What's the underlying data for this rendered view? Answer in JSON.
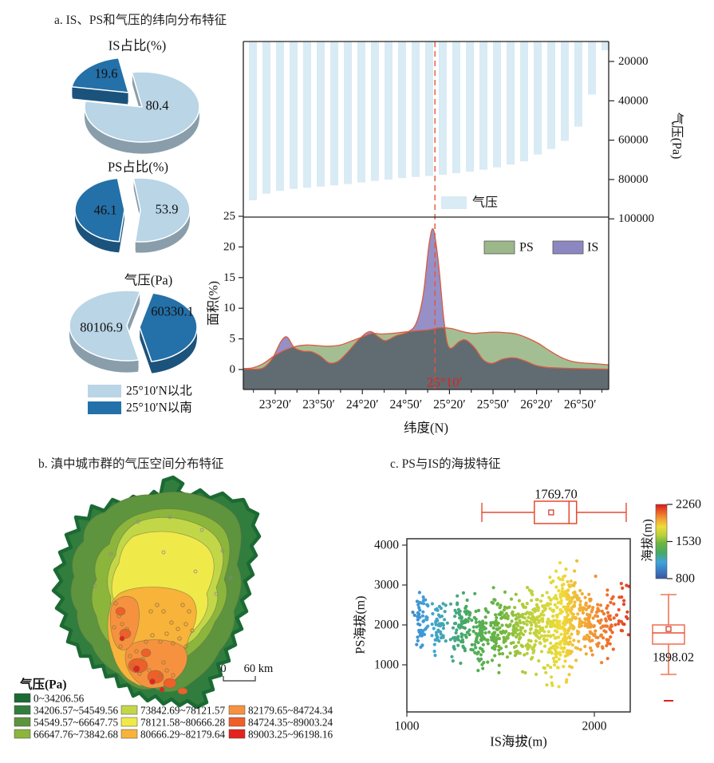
{
  "panels": {
    "a": {
      "title": "a. IS、PS和气压的纬向分布特征",
      "pie_legend": [
        {
          "label": "25°10′N以北",
          "color": "#b9d5e6"
        },
        {
          "label": "25°10′N以南",
          "color": "#2470a8"
        }
      ]
    },
    "b": {
      "title": "b. 滇中城市群的气压空间分布特征"
    },
    "c": {
      "title": "c. PS与IS的海拔特征"
    }
  },
  "chart_data": [
    {
      "id": "pressure_bars",
      "type": "bar",
      "legend": "气压",
      "ylabel": "气压(Pa)",
      "yticks": [
        20000,
        40000,
        60000,
        80000,
        100000
      ],
      "y_axis_reversed": true,
      "bar_color": "#d9ebf4",
      "values": [
        90600,
        87200,
        85700,
        84800,
        84200,
        83600,
        83000,
        82300,
        81500,
        80700,
        80000,
        79300,
        78700,
        78200,
        77600,
        76800,
        76000,
        75000,
        73800,
        72400,
        70800,
        67300,
        64500,
        60400,
        53100,
        36800,
        14300
      ]
    },
    {
      "id": "latitude_area",
      "type": "area",
      "xlabel": "纬度(N)",
      "ylabel": "面积(%)",
      "yticks": [
        0,
        5,
        10,
        15,
        20,
        25
      ],
      "ylim": [
        0,
        25
      ],
      "xticks": [
        "23°20′",
        "23°50′",
        "24°20′",
        "24°50′",
        "25°20′",
        "25°50′",
        "26°20′",
        "26°50′"
      ],
      "xtick_lat": [
        23.3333,
        23.8333,
        24.3333,
        24.8333,
        25.3333,
        25.8333,
        26.3333,
        26.8333
      ],
      "marker": {
        "lat": 25.1667,
        "label": "25°10′",
        "color": "#e8533a",
        "label_color": "#e02020"
      },
      "outline_color": "#d85c41",
      "series": [
        {
          "name": "PS",
          "color": "#9cb88a",
          "points": [
            [
              22.97,
              0.15
            ],
            [
              23.08,
              0.3
            ],
            [
              23.2,
              1.0
            ],
            [
              23.32,
              2.2
            ],
            [
              23.45,
              3.2
            ],
            [
              23.58,
              3.8
            ],
            [
              23.7,
              4.0
            ],
            [
              23.82,
              3.9
            ],
            [
              23.95,
              3.8
            ],
            [
              24.08,
              4.0
            ],
            [
              24.2,
              4.6
            ],
            [
              24.35,
              5.4
            ],
            [
              24.45,
              5.9
            ],
            [
              24.55,
              5.8
            ],
            [
              24.68,
              5.9
            ],
            [
              24.8,
              6.1
            ],
            [
              24.95,
              6.3
            ],
            [
              25.1,
              6.5
            ],
            [
              25.22,
              6.8
            ],
            [
              25.35,
              6.7
            ],
            [
              25.48,
              6.2
            ],
            [
              25.6,
              5.9
            ],
            [
              25.72,
              6.0
            ],
            [
              25.85,
              6.1
            ],
            [
              25.98,
              6.0
            ],
            [
              26.1,
              5.8
            ],
            [
              26.22,
              5.2
            ],
            [
              26.35,
              4.3
            ],
            [
              26.48,
              3.1
            ],
            [
              26.6,
              2.1
            ],
            [
              26.72,
              1.4
            ],
            [
              26.85,
              1.1
            ],
            [
              27.0,
              0.95
            ],
            [
              27.16,
              0.75
            ]
          ]
        },
        {
          "name": "IS",
          "color": "#8d87c1",
          "points": [
            [
              22.97,
              0.1
            ],
            [
              23.1,
              0.05
            ],
            [
              23.2,
              0.3
            ],
            [
              23.3,
              1.8
            ],
            [
              23.4,
              4.6
            ],
            [
              23.47,
              5.3
            ],
            [
              23.55,
              3.6
            ],
            [
              23.65,
              3.0
            ],
            [
              23.75,
              2.9
            ],
            [
              23.85,
              2.2
            ],
            [
              23.95,
              1.1
            ],
            [
              24.05,
              1.3
            ],
            [
              24.15,
              2.6
            ],
            [
              24.3,
              5.0
            ],
            [
              24.42,
              6.2
            ],
            [
              24.52,
              5.3
            ],
            [
              24.6,
              4.7
            ],
            [
              24.72,
              5.5
            ],
            [
              24.85,
              6.1
            ],
            [
              24.95,
              7.5
            ],
            [
              25.03,
              12.0
            ],
            [
              25.1,
              20.5
            ],
            [
              25.15,
              22.8
            ],
            [
              25.21,
              17.0
            ],
            [
              25.27,
              8.0
            ],
            [
              25.33,
              3.6
            ],
            [
              25.45,
              4.6
            ],
            [
              25.52,
              4.8
            ],
            [
              25.62,
              3.6
            ],
            [
              25.72,
              1.6
            ],
            [
              25.82,
              1.0
            ],
            [
              25.95,
              1.7
            ],
            [
              26.08,
              1.9
            ],
            [
              26.2,
              1.4
            ],
            [
              26.32,
              0.7
            ],
            [
              26.45,
              0.35
            ],
            [
              26.6,
              0.25
            ],
            [
              26.8,
              0.15
            ],
            [
              27.0,
              0.1
            ],
            [
              27.16,
              0.05
            ]
          ]
        }
      ]
    },
    {
      "id": "pie_is",
      "type": "pie",
      "title": "IS占比(%)",
      "slices": [
        {
          "label": "80.4",
          "value": 80.4,
          "color": "#b9d5e6"
        },
        {
          "label": "19.6",
          "value": 19.6,
          "color": "#2470a8"
        }
      ]
    },
    {
      "id": "pie_ps",
      "type": "pie",
      "title": "PS占比(%)",
      "slices": [
        {
          "label": "53.9",
          "value": 53.9,
          "color": "#b9d5e6"
        },
        {
          "label": "46.1",
          "value": 46.1,
          "color": "#2470a8"
        }
      ]
    },
    {
      "id": "pie_pressure",
      "type": "pie",
      "title": "气压(Pa)",
      "slices": [
        {
          "label": "80106.9",
          "value": 80106.9,
          "color": "#b9d5e6"
        },
        {
          "label": "60330.1",
          "value": 60330.1,
          "color": "#2470a8"
        }
      ]
    },
    {
      "id": "pressure_map",
      "type": "map",
      "legend_title": "气压(Pa)",
      "classes": [
        {
          "range": "0~34206.56",
          "color": "#1b6a33"
        },
        {
          "range": "34206.57~54549.56",
          "color": "#317d3e"
        },
        {
          "range": "54549.57~66647.75",
          "color": "#5d943d"
        },
        {
          "range": "66647.76~73842.68",
          "color": "#8cb53c"
        },
        {
          "range": "73842.69~78121.57",
          "color": "#c2d748"
        },
        {
          "range": "78121.58~80666.28",
          "color": "#f0e94a"
        },
        {
          "range": "80666.29~82179.64",
          "color": "#f7b33a"
        },
        {
          "range": "82179.65~84724.34",
          "color": "#f6923f"
        },
        {
          "range": "84724.35~89003.24",
          "color": "#ef5f2a"
        },
        {
          "range": "89003.25~96198.16",
          "color": "#e3241f"
        }
      ],
      "scalebar": {
        "zero": "0",
        "distance": "60 km"
      }
    },
    {
      "id": "elevation_scatter",
      "type": "scatter",
      "xlabel": "IS海拔(m)",
      "ylabel": "PS海拔(m)",
      "xticks": [
        1000,
        2000
      ],
      "yticks": [
        4000,
        3000,
        2000,
        1000
      ],
      "colorbar": {
        "label": "海拔(m)",
        "ticks": [
          2260,
          1530,
          800
        ],
        "min": 800,
        "max": 2260,
        "stops": [
          "#3a55a5",
          "#3a78c0",
          "#41a3dc",
          "#46a964",
          "#6db53f",
          "#b8d03b",
          "#eedc39",
          "#f3a135",
          "#ec5f28",
          "#d7191c"
        ],
        "stop_pos": [
          0,
          0.1,
          0.22,
          0.35,
          0.48,
          0.58,
          0.7,
          0.8,
          0.9,
          1
        ]
      },
      "seed": 7,
      "point_radius": 2.1,
      "clusters": [
        [
          1075,
          18,
          55,
          2050,
          320
        ],
        [
          1170,
          22,
          50,
          1900,
          330
        ],
        [
          1290,
          28,
          85,
          1950,
          360
        ],
        [
          1395,
          25,
          75,
          1800,
          420
        ],
        [
          1495,
          28,
          95,
          1900,
          400
        ],
        [
          1595,
          28,
          85,
          1950,
          400
        ],
        [
          1695,
          30,
          110,
          1980,
          430
        ],
        [
          1800,
          38,
          170,
          2000,
          620
        ],
        [
          1875,
          28,
          130,
          2250,
          520
        ],
        [
          1960,
          30,
          80,
          2050,
          450
        ],
        [
          2055,
          32,
          55,
          2050,
          430
        ],
        [
          2145,
          28,
          30,
          2250,
          430
        ]
      ],
      "box_top": {
        "series": "IS",
        "min": 1400,
        "q1": 1680,
        "median": 1865,
        "q3": 1905,
        "max": 2170,
        "mean": 1769.7,
        "label": "1769.70"
      },
      "box_right": {
        "series": "PS",
        "min": 760,
        "q1": 1520,
        "median": 1800,
        "q3": 2000,
        "max": 2760,
        "mean": 1898.02,
        "label": "1898.02",
        "outlier": 100
      }
    }
  ]
}
